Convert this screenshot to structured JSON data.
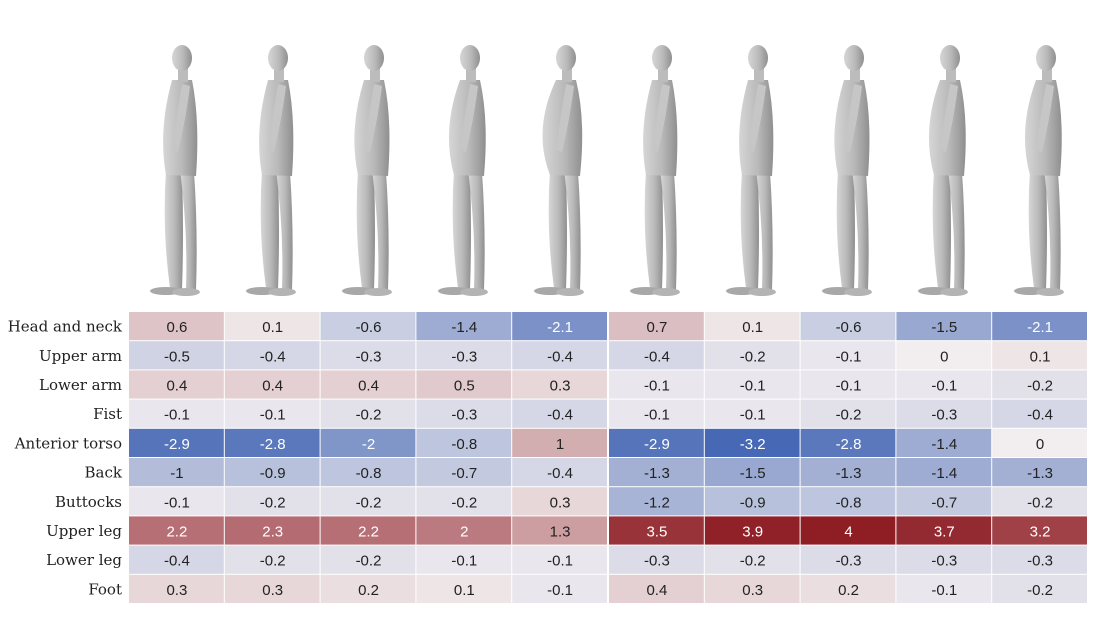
{
  "chart_data": {
    "type": "heatmap",
    "rows": [
      "Head and neck",
      "Upper arm",
      "Lower arm",
      "Fist",
      "Anterior torso",
      "Back",
      "Buttocks",
      "Upper leg",
      "Lower leg",
      "Foot"
    ],
    "groups": [
      {
        "id": "left",
        "columns": 5,
        "values": [
          [
            0.6,
            0.1,
            -0.6,
            -1.4,
            -2.1
          ],
          [
            -0.5,
            -0.4,
            -0.3,
            -0.3,
            -0.4
          ],
          [
            0.4,
            0.4,
            0.4,
            0.5,
            0.3
          ],
          [
            -0.1,
            -0.1,
            -0.2,
            -0.3,
            -0.4
          ],
          [
            -2.9,
            -2.8,
            -2,
            -0.8,
            1
          ],
          [
            -1,
            -0.9,
            -0.8,
            -0.7,
            -0.4
          ],
          [
            -0.1,
            -0.2,
            -0.2,
            -0.2,
            0.3
          ],
          [
            2.2,
            2.3,
            2.2,
            2,
            1.3
          ],
          [
            -0.4,
            -0.2,
            -0.2,
            -0.1,
            -0.1
          ],
          [
            0.3,
            0.3,
            0.2,
            0.1,
            -0.1
          ]
        ]
      },
      {
        "id": "right",
        "columns": 5,
        "values": [
          [
            0.7,
            0.1,
            -0.6,
            -1.5,
            -2.1
          ],
          [
            -0.4,
            -0.2,
            -0.1,
            0,
            0.1
          ],
          [
            -0.1,
            -0.1,
            -0.1,
            -0.1,
            -0.2
          ],
          [
            -0.1,
            -0.1,
            -0.2,
            -0.3,
            -0.4
          ],
          [
            -2.9,
            -3.2,
            -2.8,
            -1.4,
            0
          ],
          [
            -1.3,
            -1.5,
            -1.3,
            -1.4,
            -1.3
          ],
          [
            -1.2,
            -0.9,
            -0.8,
            -0.7,
            -0.2
          ],
          [
            3.5,
            3.9,
            4,
            3.7,
            3.2
          ],
          [
            -0.3,
            -0.2,
            -0.3,
            -0.3,
            -0.3
          ],
          [
            0.4,
            0.3,
            0.2,
            -0.1,
            -0.2
          ]
        ]
      }
    ],
    "colormap": {
      "negative": "#3a5fb0",
      "neutral": "#f2eef0",
      "positive": "#8e1d24",
      "vmin": -3.5,
      "vmax": 4
    }
  },
  "figures": {
    "note": "",
    "left_group": [
      {
        "id": "m1",
        "body": "slim"
      },
      {
        "id": "m2",
        "body": "slim"
      },
      {
        "id": "m3",
        "body": "average"
      },
      {
        "id": "m4",
        "body": "heavy"
      },
      {
        "id": "m5",
        "body": "obese"
      }
    ],
    "right_group": [
      {
        "id": "f1",
        "body": "slim"
      },
      {
        "id": "f2",
        "body": "slim"
      },
      {
        "id": "f3",
        "body": "average"
      },
      {
        "id": "f4",
        "body": "heavy"
      },
      {
        "id": "f5",
        "body": "heavy"
      }
    ],
    "color": "#bdbdbd"
  }
}
